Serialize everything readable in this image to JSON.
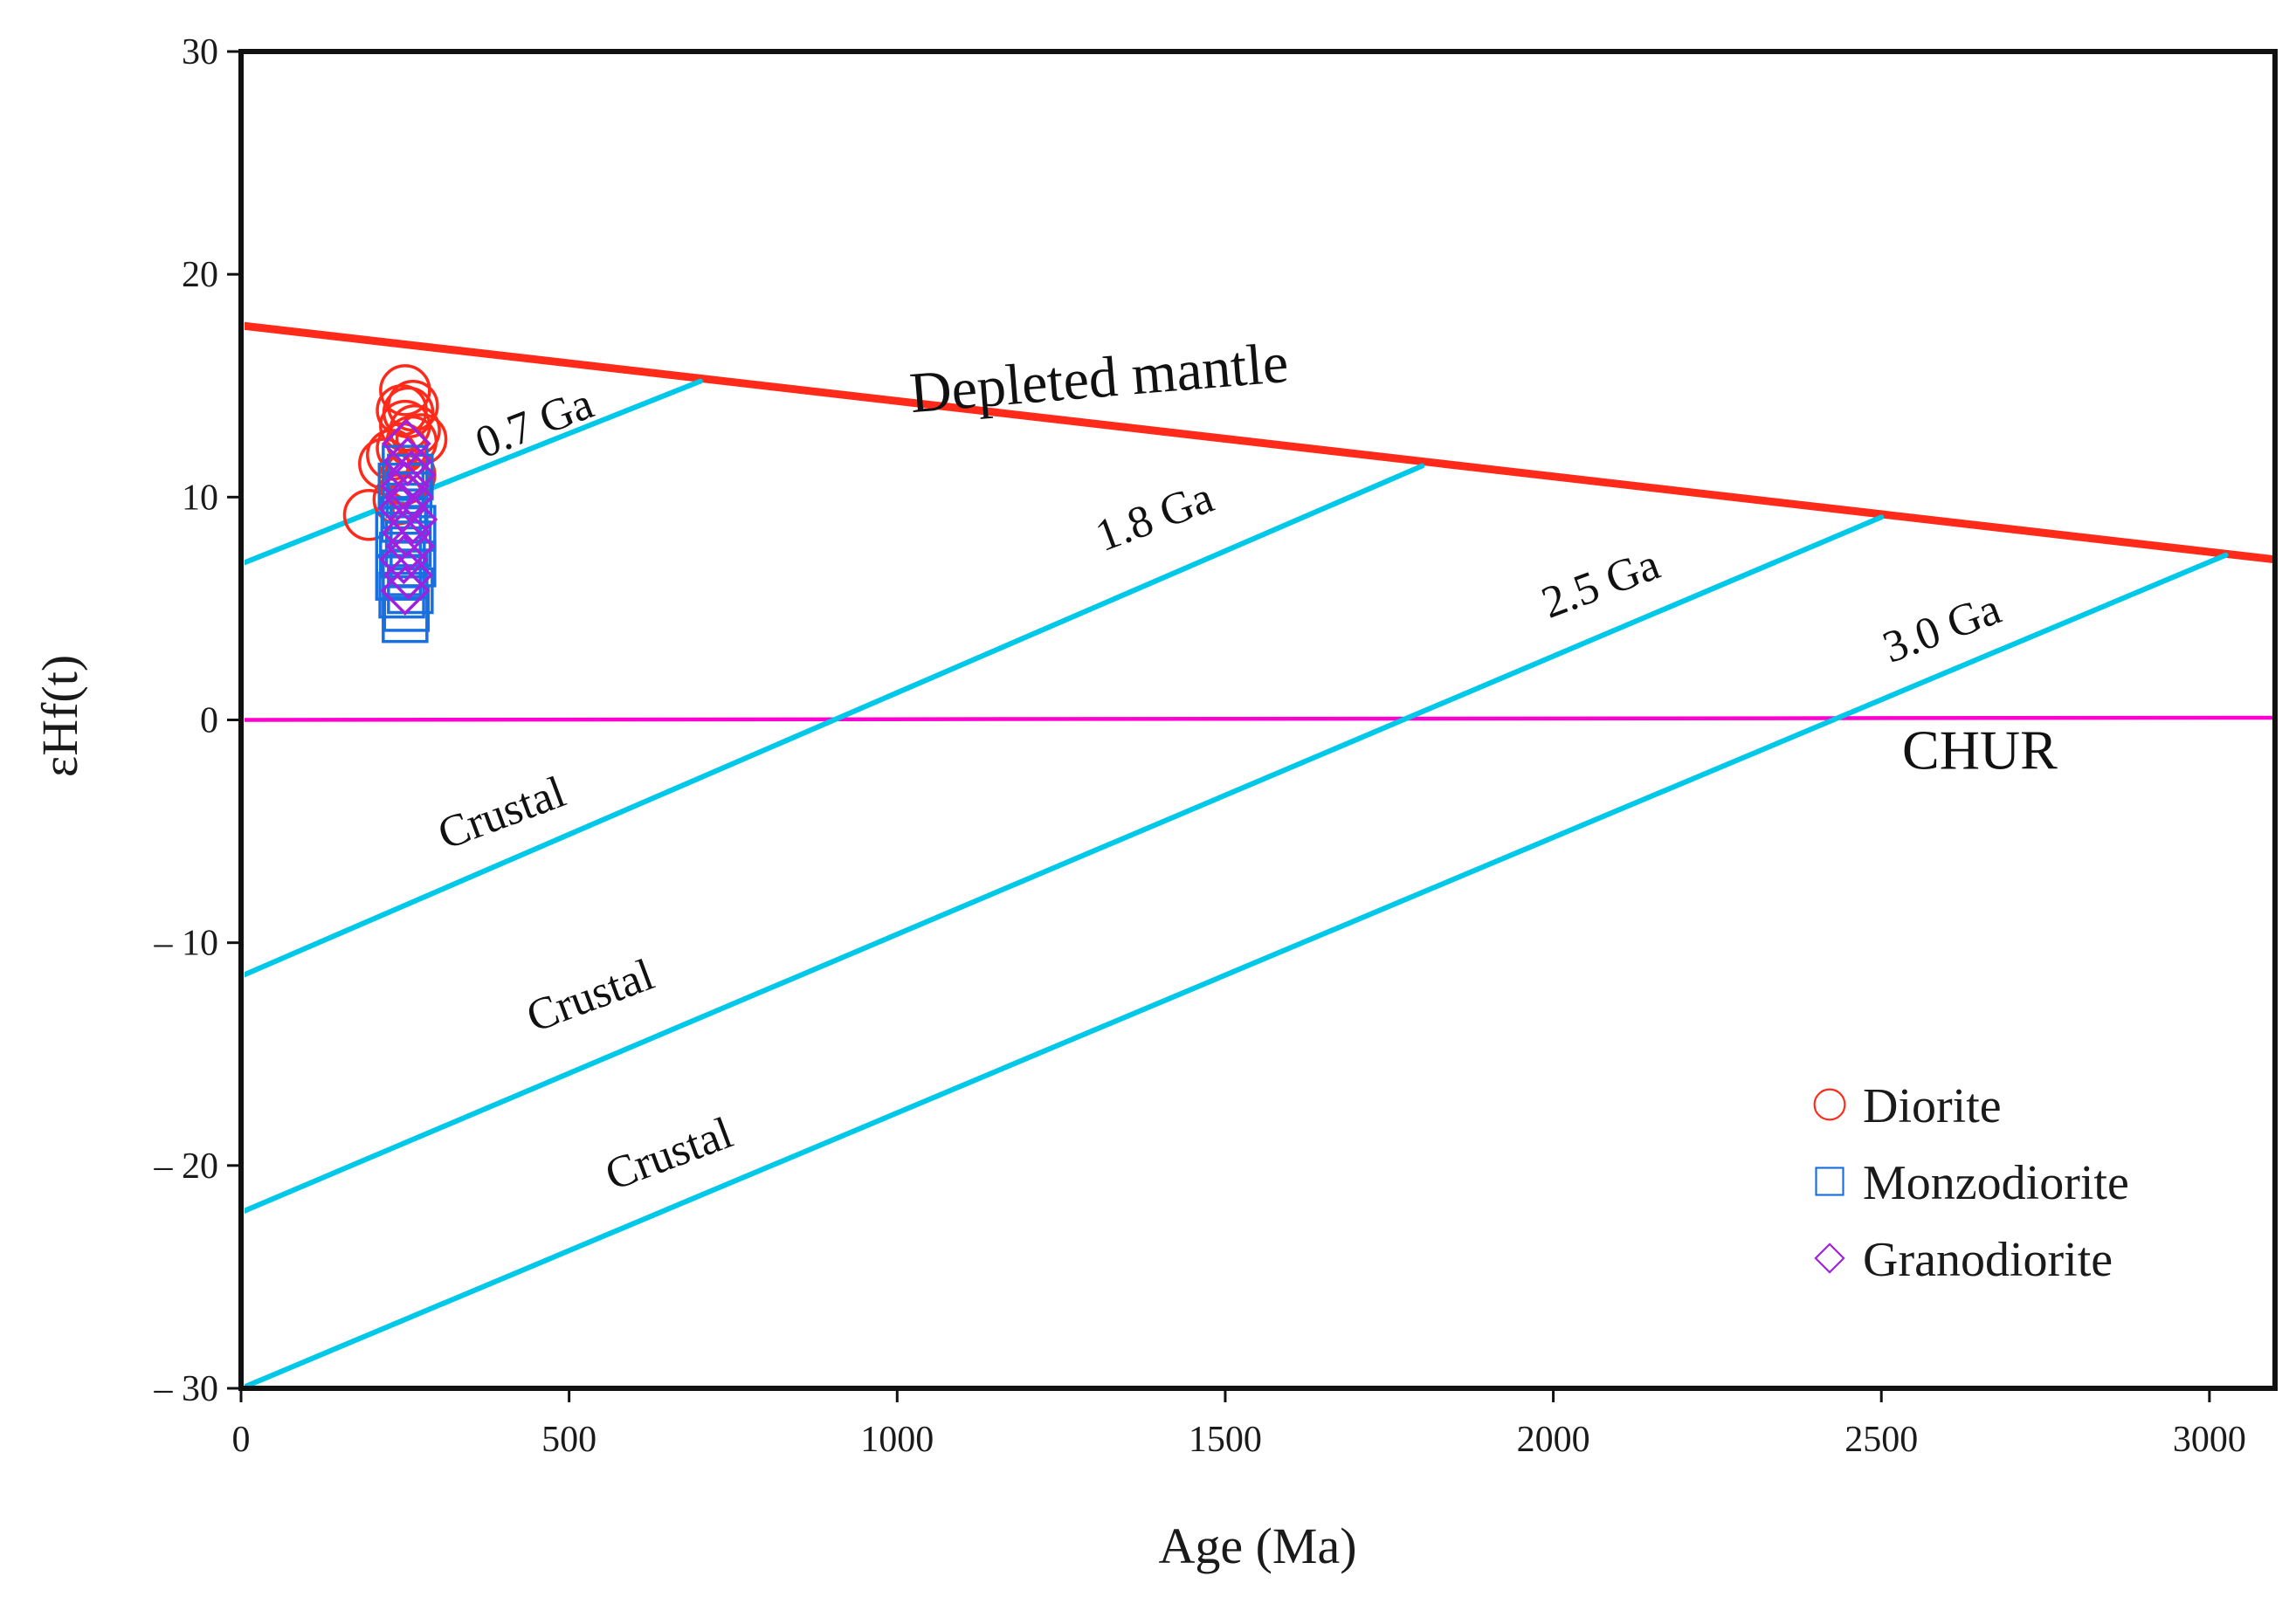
{
  "chart_data": {
    "type": "scatter",
    "xlabel": "Age (Ma)",
    "ylabel": "εHf(t)",
    "xlim": [
      0,
      3100
    ],
    "ylim": [
      -30,
      30
    ],
    "xticks": [
      0,
      500,
      1000,
      1500,
      2000,
      2500,
      3000
    ],
    "yticks": [
      30,
      20,
      10,
      0,
      -10,
      -20,
      -30
    ],
    "ytick_labels": [
      "30",
      "20",
      "10",
      "0",
      "– 10",
      "– 20",
      "– 30"
    ],
    "reference_lines": [
      {
        "name": "Depleted mantle",
        "color": "#ff2a1a",
        "points": [
          [
            0,
            17.7
          ],
          [
            3100,
            7.2
          ]
        ]
      },
      {
        "name": "CHUR",
        "color": "#ff00d0",
        "points": [
          [
            0,
            0
          ],
          [
            3100,
            0.1
          ]
        ]
      },
      {
        "name": "0.7 Ga",
        "color": "#00c8e8",
        "points": [
          [
            0,
            7.0
          ],
          [
            700,
            15.2
          ]
        ]
      },
      {
        "name": "1.8 Ga",
        "color": "#00c8e8",
        "points": [
          [
            0,
            -11.5
          ],
          [
            1800,
            11.4
          ]
        ]
      },
      {
        "name": "2.5 Ga",
        "color": "#00c8e8",
        "points": [
          [
            0,
            -22.1
          ],
          [
            2500,
            9.1
          ]
        ]
      },
      {
        "name": "3.0 Ga",
        "color": "#00c8e8",
        "points": [
          [
            0,
            -30.0
          ],
          [
            3025,
            7.4
          ]
        ]
      }
    ],
    "annotations": [
      {
        "text": "Depleted mantle",
        "x": 1310,
        "y": 14.5,
        "angle": -4.7,
        "size": 66
      },
      {
        "text": "CHUR",
        "x": 2650,
        "y": -2.2,
        "angle": 0,
        "size": 64
      },
      {
        "text": "0.7 Ga",
        "x": 455,
        "y": 12.7,
        "angle": -21,
        "size": 52
      },
      {
        "text": "1.8 Ga",
        "x": 1400,
        "y": 8.5,
        "angle": -20.5,
        "size": 52
      },
      {
        "text": "2.5 Ga",
        "x": 2080,
        "y": 5.5,
        "angle": -20.5,
        "size": 52
      },
      {
        "text": "3.0 Ga",
        "x": 2600,
        "y": 3.5,
        "angle": -20.5,
        "size": 52
      },
      {
        "text": "Crustal",
        "x": 405,
        "y": -4.8,
        "angle": -20.5,
        "size": 52
      },
      {
        "text": "Crustal",
        "x": 540,
        "y": -13.0,
        "angle": -20.5,
        "size": 52
      },
      {
        "text": "Crustal",
        "x": 660,
        "y": -20.1,
        "angle": -20.5,
        "size": 52
      }
    ],
    "series": [
      {
        "name": "Diorite",
        "marker": "circle",
        "color": "#ff2a1a",
        "points": [
          [
            195,
            9.2
          ],
          [
            240,
            9.9
          ],
          [
            218,
            11.5
          ],
          [
            230,
            11.9
          ],
          [
            245,
            12.2
          ],
          [
            260,
            12.5
          ],
          [
            275,
            12.6
          ],
          [
            250,
            13.2
          ],
          [
            265,
            13.0
          ],
          [
            255,
            13.8
          ],
          [
            245,
            13.9
          ],
          [
            262,
            14.1
          ],
          [
            250,
            14.8
          ],
          [
            248,
            10.8
          ],
          [
            258,
            11.0
          ]
        ]
      },
      {
        "name": "Monzodiorite",
        "marker": "square",
        "color": "#1a6fe0",
        "points": [
          [
            250,
            4.5
          ],
          [
            252,
            5.0
          ],
          [
            245,
            5.6
          ],
          [
            258,
            5.8
          ],
          [
            240,
            6.4
          ],
          [
            250,
            6.6
          ],
          [
            262,
            7.0
          ],
          [
            246,
            7.4
          ],
          [
            255,
            7.9
          ],
          [
            240,
            8.3
          ],
          [
            262,
            8.6
          ],
          [
            248,
            9.0
          ],
          [
            250,
            9.6
          ],
          [
            256,
            10.1
          ],
          [
            244,
            10.5
          ],
          [
            258,
            10.9
          ],
          [
            250,
            11.3
          ]
        ]
      },
      {
        "name": "Granodiorite",
        "marker": "diamond",
        "color": "#a020e0",
        "points": [
          [
            250,
            5.8
          ],
          [
            255,
            6.5
          ],
          [
            248,
            7.2
          ],
          [
            258,
            7.8
          ],
          [
            252,
            8.4
          ],
          [
            262,
            9.0
          ],
          [
            246,
            9.5
          ],
          [
            256,
            10.0
          ],
          [
            250,
            10.5
          ],
          [
            260,
            11.0
          ],
          [
            254,
            11.6
          ],
          [
            252,
            12.4
          ]
        ]
      }
    ],
    "legend": {
      "position": "bottom-right",
      "items": [
        "Diorite",
        "Monzodiorite",
        "Granodiorite"
      ]
    }
  }
}
